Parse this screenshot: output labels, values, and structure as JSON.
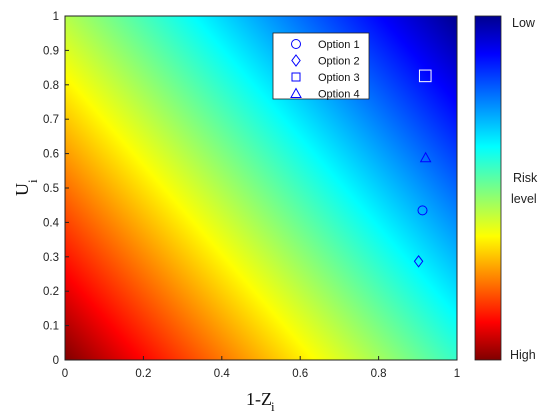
{
  "chart_data": {
    "type": "scatter",
    "background": "heatmap",
    "xlabel": "1-Z",
    "xlabel_sub": "i",
    "ylabel": "U",
    "ylabel_sub": "i",
    "xlim": [
      0,
      1
    ],
    "ylim": [
      0,
      1
    ],
    "xticks": [
      "0",
      "0.2",
      "0.4",
      "0.6",
      "0.8",
      "1"
    ],
    "yticks": [
      "0",
      "0.1",
      "0.2",
      "0.3",
      "0.4",
      "0.5",
      "0.6",
      "0.7",
      "0.8",
      "0.9",
      "1"
    ],
    "grid": false,
    "legend_position": "top-right",
    "series": [
      {
        "name": "Option 1",
        "marker": "circle",
        "x": 0.912,
        "y": 0.435
      },
      {
        "name": "Option 2",
        "marker": "diamond",
        "x": 0.902,
        "y": 0.287
      },
      {
        "name": "Option 3",
        "marker": "square",
        "x": 0.919,
        "y": 0.826
      },
      {
        "name": "Option 4",
        "marker": "triangle",
        "x": 0.92,
        "y": 0.588
      }
    ],
    "marker_colors": {
      "Option 1": "#0000ff",
      "Option 2": "#0000ff",
      "Option 3": "#ffffff",
      "Option 4": "#0000ff"
    },
    "colorbar": {
      "top_label": "Low",
      "middle_label_line1": "Risk",
      "middle_label_line2": "level",
      "bottom_label": "High",
      "colormap": "jet"
    }
  }
}
